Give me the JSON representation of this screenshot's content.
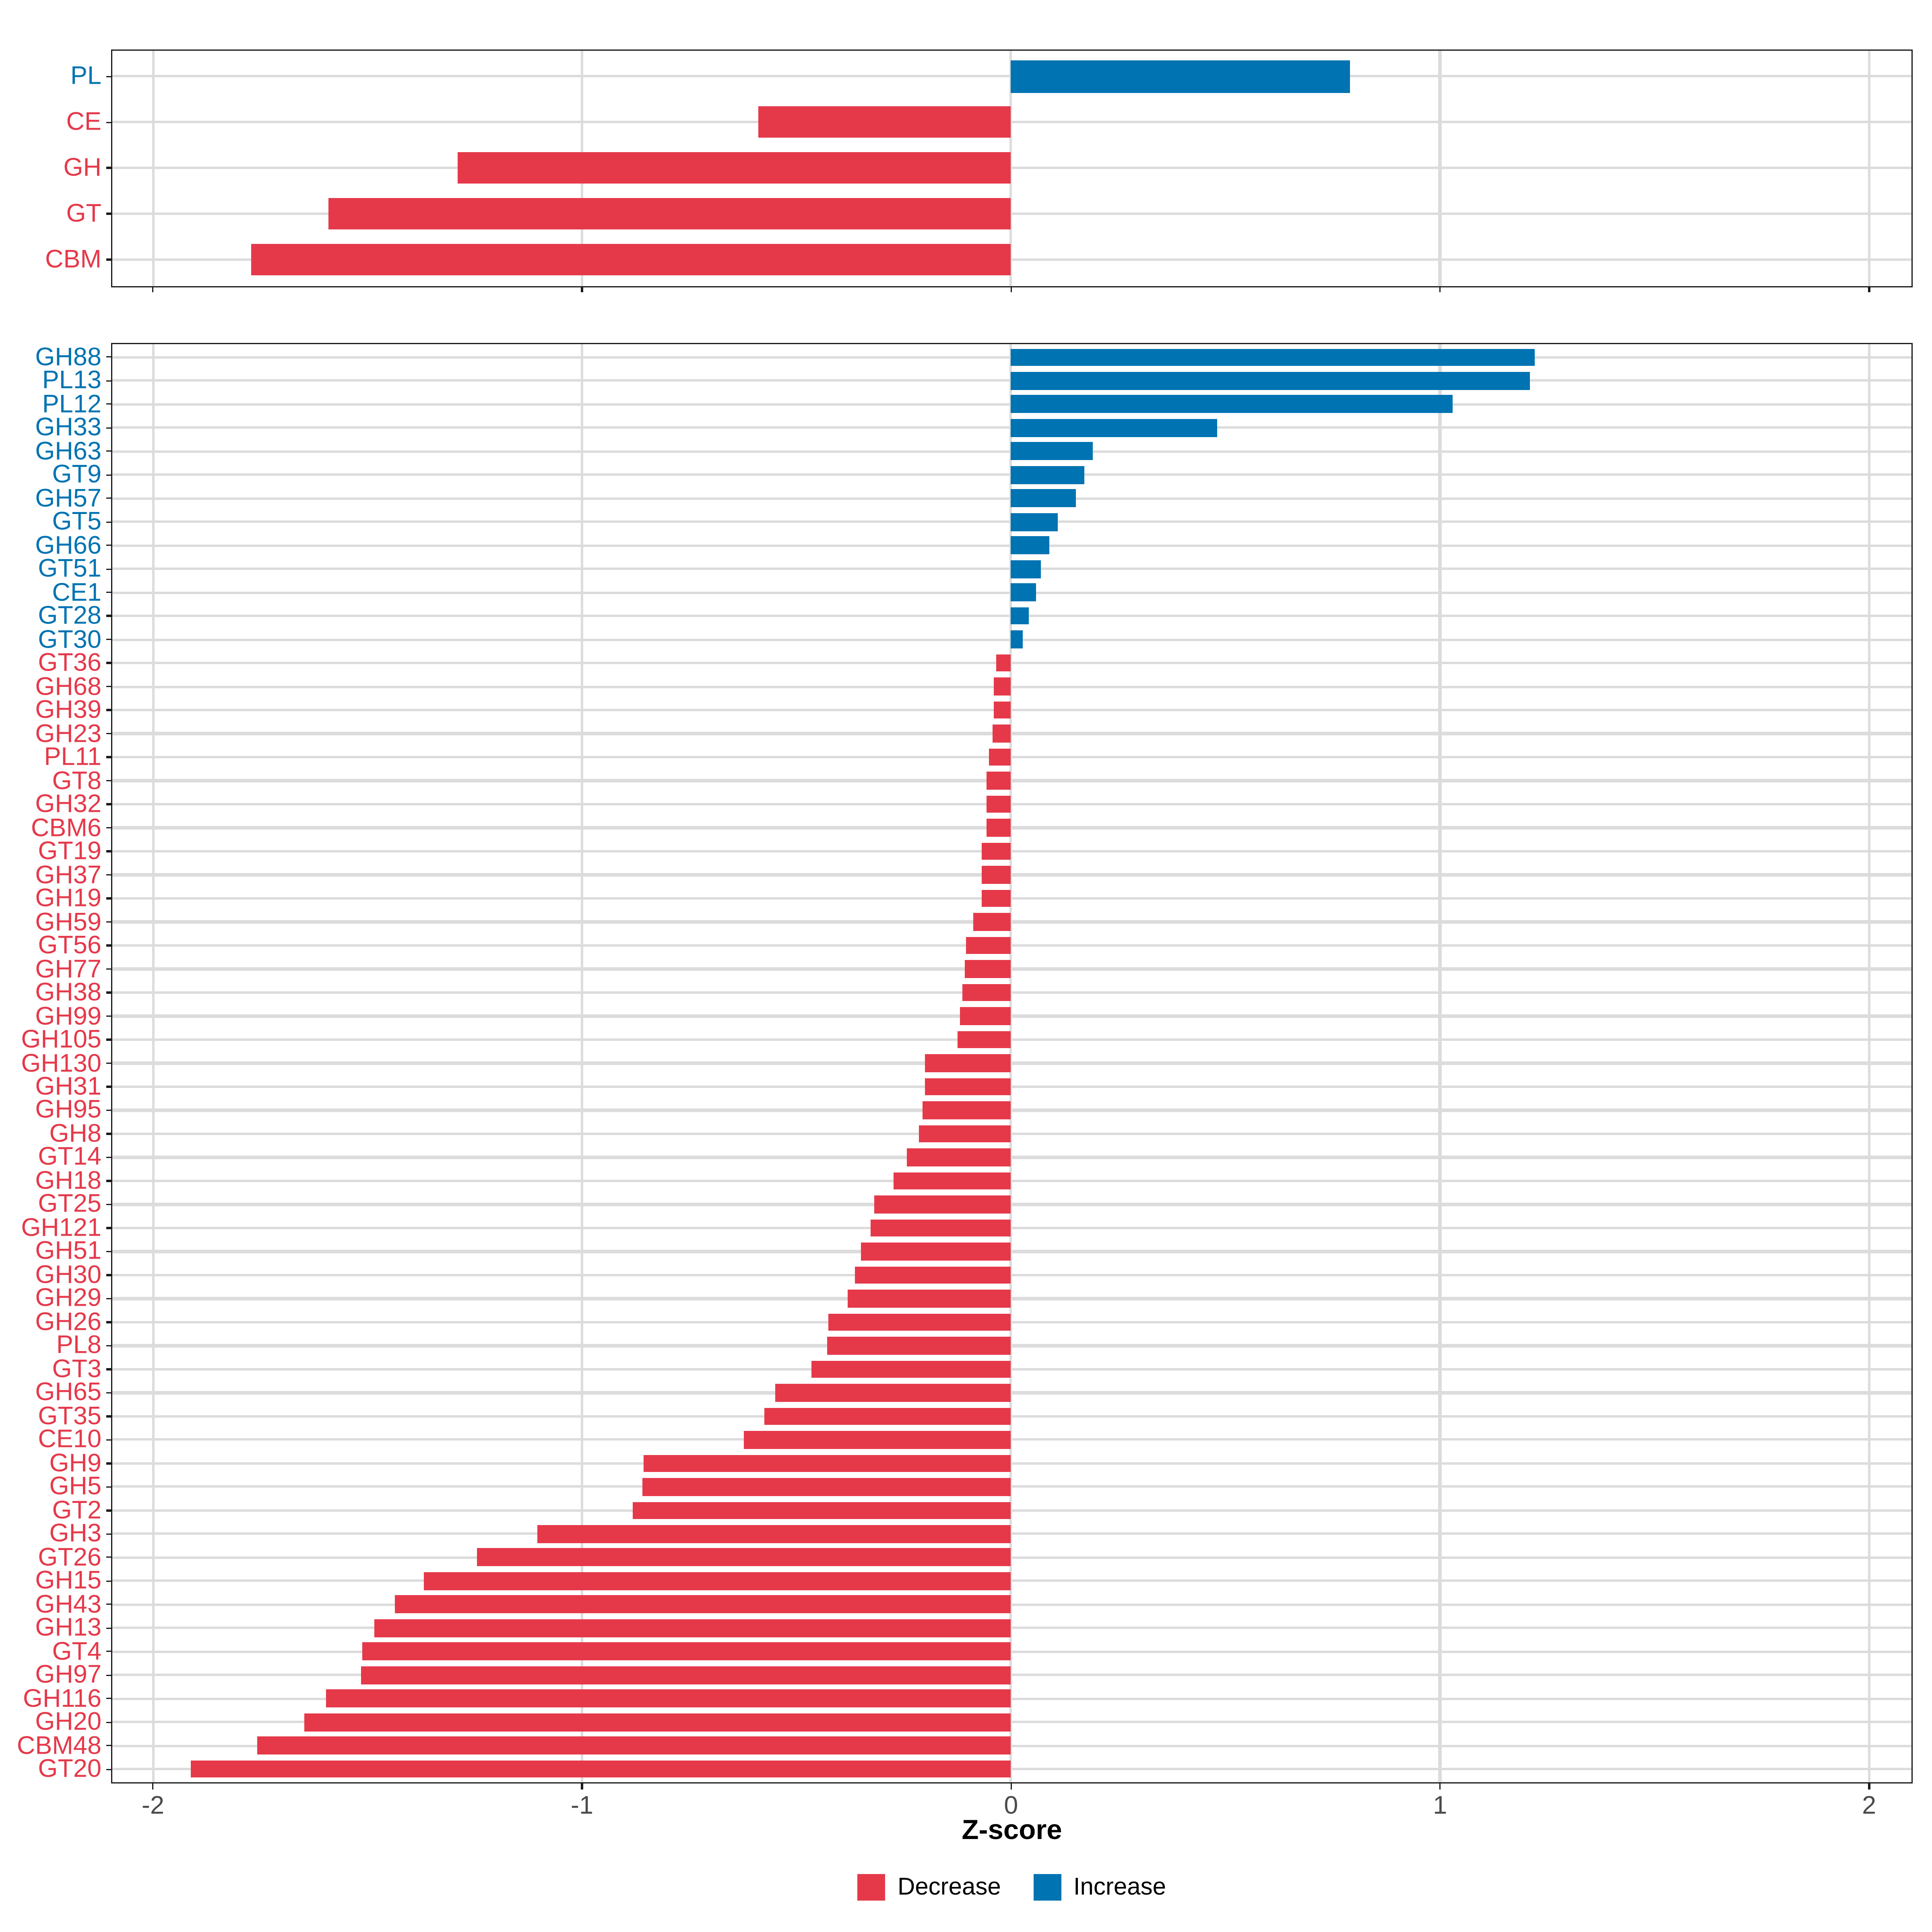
{
  "axis": {
    "title": "Z-score",
    "tick_labels": [
      "-2",
      "-1",
      "0",
      "1",
      "2"
    ],
    "tick_values": [
      -2,
      -1,
      0,
      1,
      2
    ],
    "xlim": [
      -2.1,
      2.1
    ],
    "grid": true,
    "legend_position": "bottom"
  },
  "colors": {
    "decrease": "#E5394A",
    "increase": "#0073B2",
    "grid": "#DCDCDC",
    "panel_border": "#1A1A1A",
    "tick_label": "#4A4A4A",
    "background": "#FFFFFF"
  },
  "legend": {
    "items": [
      {
        "label": "Decrease",
        "color": "#E5394A",
        "direction": "decrease"
      },
      {
        "label": "Increase",
        "color": "#0073B2",
        "direction": "increase"
      }
    ]
  },
  "chart_data": [
    {
      "type": "bar",
      "orientation": "horizontal",
      "panel": "family-summary",
      "title": "",
      "xlabel": "Z-score",
      "ylabel": "",
      "xlim": [
        -2.1,
        2.1
      ],
      "categories": [
        "PL",
        "CE",
        "GH",
        "GT",
        "CBM"
      ],
      "values": [
        0.79,
        -0.59,
        -1.29,
        -1.59,
        -1.77
      ]
    },
    {
      "type": "bar",
      "orientation": "horizontal",
      "panel": "family-detail",
      "title": "",
      "xlabel": "Z-score",
      "ylabel": "",
      "xlim": [
        -2.1,
        2.1
      ],
      "categories": [
        "GH88",
        "PL13",
        "PL12",
        "GH33",
        "GH63",
        "GT9",
        "GH57",
        "GT5",
        "GH66",
        "GT51",
        "CE1",
        "GT28",
        "GT30",
        "GT36",
        "GH68",
        "GH39",
        "GH23",
        "PL11",
        "GT8",
        "GH32",
        "CBM6",
        "GT19",
        "GH37",
        "GH19",
        "GH59",
        "GT56",
        "GH77",
        "GH38",
        "GH99",
        "GH105",
        "GH130",
        "GH31",
        "GH95",
        "GH8",
        "GT14",
        "GH18",
        "GT25",
        "GH121",
        "GH51",
        "GH30",
        "GH29",
        "GH26",
        "PL8",
        "GT3",
        "GH65",
        "GT35",
        "CE10",
        "GH9",
        "GH5",
        "GT2",
        "GH3",
        "GT26",
        "GH15",
        "GH43",
        "GH13",
        "GT4",
        "GH97",
        "GH116",
        "GH20",
        "CBM48",
        "GT20"
      ],
      "values": [
        1.22,
        1.21,
        1.03,
        0.48,
        0.19,
        0.17,
        0.15,
        0.11,
        0.09,
        0.07,
        0.058,
        0.04,
        0.026,
        -0.035,
        -0.04,
        -0.04,
        -0.042,
        -0.052,
        -0.056,
        -0.057,
        -0.058,
        -0.067,
        -0.068,
        -0.069,
        -0.087,
        -0.105,
        -0.108,
        -0.113,
        -0.119,
        -0.124,
        -0.2,
        -0.2,
        -0.207,
        -0.215,
        -0.244,
        -0.274,
        -0.319,
        -0.326,
        -0.349,
        -0.364,
        -0.382,
        -0.426,
        -0.43,
        -0.465,
        -0.549,
        -0.576,
        -0.624,
        -0.857,
        -0.86,
        -0.881,
        -1.103,
        -1.245,
        -1.369,
        -1.436,
        -1.483,
        -1.513,
        -1.515,
        -1.596,
        -1.647,
        -1.757,
        -1.912
      ]
    }
  ]
}
